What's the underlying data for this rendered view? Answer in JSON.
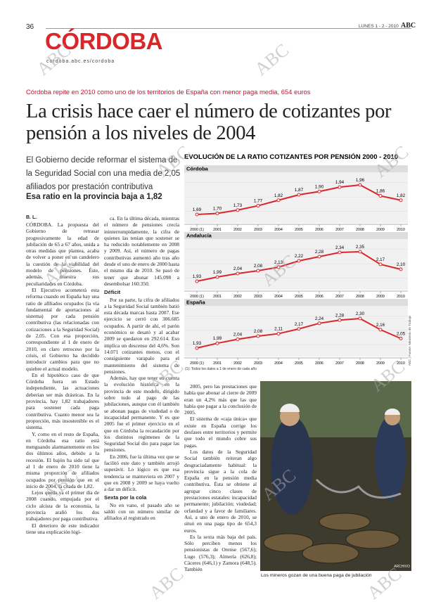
{
  "header": {
    "page_number": "36",
    "section": "CÓRDOBA",
    "url": "cordoba.abc.es/cordoba",
    "date": "LUNES 1 - 2 - 2010",
    "brand": "ABC"
  },
  "watermark": "ABC",
  "article": {
    "kicker": "Córdoba repite en 2010 como uno de los territorios de España con menor paga media, 654 euros",
    "headline": "La crisis hace caer el número de cotizantes por pensión a los niveles de 2004",
    "lead": "El Gobierno decide reformar el sistema de la Seguridad Social con una media de 2,05 afiliados por prestación contributiva",
    "lead_bold": "Esa ratio en la provincia baja a 1,82",
    "byline": "B. L.",
    "columns": [
      [
        {
          "p": "CÓRDOBA. La propuesta del Gobierno de retrasar progresivamente la edad de jubilación de 65 a 67 años, unida a otras medidas que plantea, acaba de volver a poner en un candelero la cuestión de la viabilidad del modelo de pensiones. Éste, además, muestra sus peculiaridades en Córdoba."
        },
        {
          "p": "El Ejecutivo acometerá esta reforma cuando en España hay una ratio de afiliados ocupados (la vía fundamental de aportaciones al sistema) por cada pensión contributiva (las relacionadas con cotizaciones a la Seguridad Social) de 2,05. Con esa proporción, correspondiente al 1 de enero de 2010, en claro retroceso por la crisis, el Gobierno ha decidido introducir cambios para que no quiebre el actual modelo."
        },
        {
          "p": "En el hipotético caso de que Córdoba fuera un Estado independiente, las actuaciones deberían ser más drásticas. En la provincia, hay 1,82 trabajadores para sostener cada paga contributiva. Cuanto menor sea la proporción, más insostenible es el sistema."
        },
        {
          "p": "Y, como en el resto de España, en Córdoba esa ratio está menguando alarmantemente en los dos últimos años, debido a la recesión. El bajón ha sido tal que al 1 de enero de 2010 tiene la misma proporción de afiliados ocupados por pensión que en el inicio de 2004, la citada de 1,82."
        },
        {
          "p": "Lejos queda ya el primer día de 2008 cuando, empujada por el ciclo alcista de la economía, la provincia arañó los dos trabajadores por paga contributiva."
        },
        {
          "p": "El deterioro de este indicador tiene una explicación lógi-"
        }
      ],
      [
        {
          "p": "ca. En la última década, mientras el número de pensiones crecía ininterrumpidamente, la cifra de quienes las tenían que sostener se ha reducido notablemente en 2008 y 2009. Así, el número de pagas contributivas aumentó año tras año desde el uno de enero de 2000 hasta el mismo día de 2010. Se pasó de tener que abonar 145.098 a desembolsar 160.350."
        },
        {
          "h": "Déficit"
        },
        {
          "p": "Por su parte, la cifra de afiliados a la Seguridad Social también batió esta década marcas hasta 2007. Ese ejercicio se cerró con 306.685 ocupados. A partir de ahí, el parón económico se desató y al acabar 2009 se quedaron en 292.614. Eso implica un descenso del 4,6%. Son 14.071 cotizantes menos, con el consiguiente varapalo para el mantenimiento del sistema de pensiones."
        },
        {
          "p": "Además, hay que tener en cuenta la evolución histórica en la provincia de este modelo, dirigido sobre todo al pago de las jubilaciones, aunque con él también se abonan pagas de viudedad o de incapacidad permanente. Y es que 2005 fue el primer ejercicio en el que en Córdoba la recaudación por los distintos regímenes de la Seguridad Social dio para pagar las pensiones."
        },
        {
          "p": "En 2006, fue la última vez que se facilitó este dato y también arrojó superávit. Lo lógico es que esa tendencia se mantuviera en 2007 y que en 2008 y 2009 se haya vuelto a dar un déficit."
        },
        {
          "h": "Sexta por la cola"
        },
        {
          "p": "No en vano, el pasado año se saldó con un número similar de afiliados al registrado en"
        }
      ],
      [
        {
          "p": "2005, pero las prestaciones que había que abonar al cierre de 2009 eran un 4,2% más que las que había que pagar a la conclusión de 2005."
        },
        {
          "p": "El sistema de «caja única» que existe en España corrige los desfases entre territorios y permite que todo el mundo cobre sus pagas."
        },
        {
          "p": "Los datos de la Seguridad Social también reiteran algo desgraciadamente habitual: la provincia sigue a la cola de España en la pensión media contributiva. Ésta se obtiene al agrupar cinco clases de prestaciones estatales: incapacidad permanente; jubilación; viudedad; orfandad y a favor de familiares. Así, a uno de enero de 2010, se situó en una paga tipo de 654,3 euros."
        },
        {
          "p": "Es la sexta más baja del país. Sólo perciben menos los pensionistas de Orense (567,6); Lugo (576,3); Almería (626,8); Cáceres (646,1) y Zamora (648,5). También"
        }
      ]
    ],
    "photo_caption": "Los mineros gozan de una buena paga de jubilación",
    "photo_credit": "ARCHIVO"
  },
  "infographic": {
    "title": "EVOLUCIÓN DE LA RATIO COTIZANTES POR PENSIÓN 2000 - 2010",
    "note": "(1): Todos los datos a 1 de enero de cada año",
    "source": "ABC | Fuente: Ministerio de Trabajo"
  },
  "chart_data": [
    {
      "type": "line",
      "title": "Córdoba",
      "color": "#d9262b",
      "categories": [
        "2000 (1)",
        "2001",
        "2002",
        "2003",
        "2004",
        "2005",
        "2006",
        "2007",
        "2008",
        "2009",
        "2010"
      ],
      "values": [
        1.69,
        1.7,
        1.73,
        1.77,
        1.82,
        1.87,
        1.9,
        1.94,
        1.96,
        1.86,
        1.82
      ],
      "value_labels": [
        "1,69",
        "1,70",
        "1,73",
        "1,77",
        "1,82",
        "1,87",
        "1,90",
        "1,94",
        "1,96",
        "1,86",
        "1,82"
      ]
    },
    {
      "type": "line",
      "title": "Andalucía",
      "color": "#d9262b",
      "categories": [
        "2000 (1)",
        "2001",
        "2002",
        "2003",
        "2004",
        "2005",
        "2006",
        "2007",
        "2008",
        "2009",
        "2010"
      ],
      "values": [
        1.93,
        1.99,
        2.04,
        2.08,
        2.13,
        2.22,
        2.28,
        2.34,
        2.35,
        2.17,
        2.1
      ],
      "value_labels": [
        "1,93",
        "1,99",
        "2,04",
        "2,08",
        "2,13",
        "2,22",
        "2,28",
        "2,34",
        "2,35",
        "2,17",
        "2,10"
      ]
    },
    {
      "type": "line",
      "title": "España",
      "color": "#d9262b",
      "categories": [
        "2000 (1)",
        "2001",
        "2002",
        "2003",
        "2004",
        "2005",
        "2006",
        "2007",
        "2008",
        "2009",
        "2010"
      ],
      "values": [
        1.93,
        1.99,
        2.04,
        2.08,
        2.11,
        2.17,
        2.24,
        2.28,
        2.3,
        2.16,
        2.05
      ],
      "value_labels": [
        "1,93",
        "1,99",
        "2,04",
        "2,08",
        "2,11",
        "2,17",
        "2,24",
        "2,28",
        "2,30",
        "2,16",
        "2,05"
      ]
    }
  ]
}
